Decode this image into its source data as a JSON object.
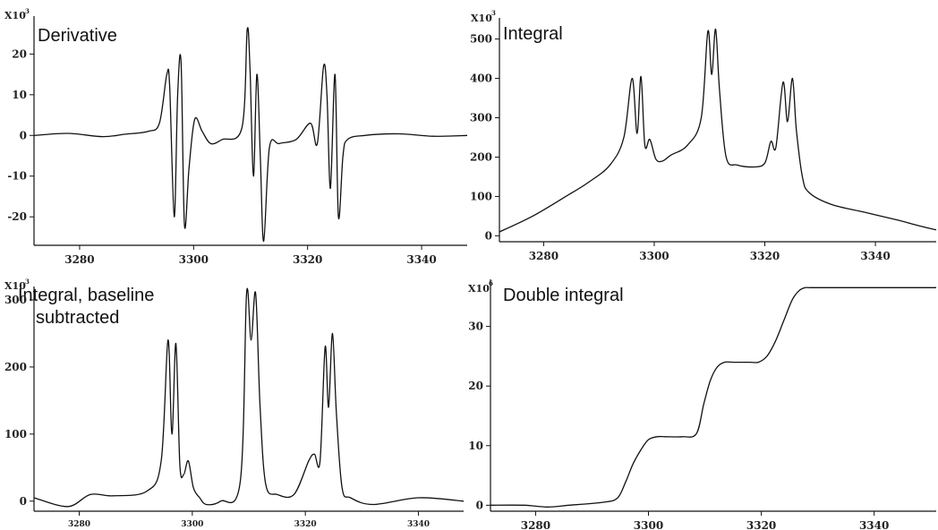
{
  "chart_data": [
    {
      "type": "line",
      "title": "Derivative",
      "y_multiplier": "X10",
      "y_multiplier_exp": "3",
      "xlim": [
        3272,
        3348
      ],
      "ylim": [
        -27,
        28
      ],
      "x_ticks": [
        3280,
        3300,
        3320,
        3340
      ],
      "y_ticks": [
        -20,
        -10,
        0,
        10,
        20
      ],
      "series": [
        {
          "x": [
            3272,
            3278,
            3284,
            3288,
            3292,
            3294,
            3295.3,
            3295.8,
            3296.6,
            3297.2,
            3297.8,
            3298.4,
            3299.2,
            3300.2,
            3301.5,
            3303,
            3305,
            3308.5,
            3309.4,
            3309.9,
            3310.5,
            3311.1,
            3311.7,
            3312.3,
            3313.3,
            3315,
            3318,
            3320.5,
            3321.7,
            3322.8,
            3323.4,
            3324,
            3324.8,
            3325.4,
            3326.2,
            3327,
            3330,
            3336,
            3342,
            3348
          ],
          "y": [
            0,
            0.5,
            -0.3,
            0.3,
            1,
            3,
            15,
            12,
            -20,
            10,
            18,
            -22,
            -8,
            4,
            1,
            -2,
            -1,
            2,
            26,
            16,
            -10,
            15,
            -5,
            -26,
            -3,
            -2,
            -1,
            3,
            -2,
            17,
            10,
            -13,
            15,
            -20,
            -5,
            -1,
            0,
            0.4,
            -0.2,
            0
          ]
        }
      ]
    },
    {
      "type": "line",
      "title": "Integral",
      "y_multiplier": "X10",
      "y_multiplier_exp": "3",
      "xlim": [
        3272,
        3351
      ],
      "ylim": [
        -15,
        540
      ],
      "x_ticks": [
        3280,
        3300,
        3320,
        3340
      ],
      "y_ticks": [
        0,
        100,
        200,
        300,
        400,
        500
      ],
      "series": [
        {
          "x": [
            3272,
            3278,
            3284,
            3288,
            3292,
            3294.5,
            3296,
            3296.9,
            3297.6,
            3298.3,
            3299.2,
            3300.3,
            3301.5,
            3303,
            3306,
            3308.5,
            3309.7,
            3310.4,
            3311.1,
            3311.8,
            3313,
            3315,
            3318,
            3320,
            3321.1,
            3322,
            3323.3,
            3324.1,
            3325,
            3325.7,
            3326.8,
            3328,
            3332,
            3338,
            3344,
            3348,
            3351
          ],
          "y": [
            10,
            50,
            100,
            135,
            180,
            250,
            400,
            260,
            405,
            230,
            245,
            195,
            190,
            205,
            230,
            300,
            520,
            410,
            525,
            370,
            200,
            180,
            175,
            185,
            240,
            225,
            390,
            290,
            400,
            270,
            150,
            110,
            80,
            60,
            40,
            25,
            15
          ]
        }
      ]
    },
    {
      "type": "line",
      "title": "Integral, baseline",
      "title_line2": "subtracted",
      "y_multiplier": "X10",
      "y_multiplier_exp": "3",
      "xlim": [
        3272,
        3348
      ],
      "ylim": [
        -15,
        312
      ],
      "x_ticks": [
        3280,
        3300,
        3320,
        3340
      ],
      "y_ticks": [
        0,
        100,
        200,
        300
      ],
      "series": [
        {
          "x": [
            3272,
            3278,
            3282,
            3286,
            3292,
            3294.5,
            3295.7,
            3296.4,
            3297.1,
            3297.8,
            3298.5,
            3299.3,
            3300.2,
            3301.3,
            3302.5,
            3305,
            3308.5,
            3309.6,
            3310.4,
            3311.2,
            3312,
            3313,
            3315,
            3318,
            3320.6,
            3321.6,
            3322.6,
            3323.5,
            3324.1,
            3324.8,
            3325.5,
            3326.5,
            3328,
            3332,
            3340,
            3348
          ],
          "y": [
            5,
            -8,
            10,
            8,
            15,
            60,
            240,
            100,
            235,
            55,
            40,
            60,
            20,
            5,
            -5,
            0,
            30,
            310,
            240,
            310,
            140,
            25,
            10,
            10,
            60,
            70,
            60,
            230,
            140,
            250,
            130,
            20,
            5,
            -5,
            5,
            0
          ]
        }
      ]
    },
    {
      "type": "line",
      "title": "Double integral",
      "y_multiplier": "X10",
      "y_multiplier_exp": "6",
      "xlim": [
        3272,
        3351
      ],
      "ylim": [
        -1,
        37
      ],
      "x_ticks": [
        3280,
        3300,
        3320,
        3340
      ],
      "y_ticks": [
        0,
        10,
        20,
        30
      ],
      "series": [
        {
          "x": [
            3272,
            3278,
            3282,
            3286,
            3292,
            3294.5,
            3296,
            3297.3,
            3298.8,
            3300,
            3301.5,
            3303,
            3306,
            3308.5,
            3309.8,
            3311,
            3312.2,
            3313.5,
            3315,
            3318,
            3319.5,
            3321,
            3322.5,
            3324,
            3325.5,
            3326.7,
            3327.8,
            3329,
            3335,
            3344,
            3351
          ],
          "y": [
            0,
            0,
            -0.3,
            0,
            0.5,
            1.2,
            4,
            7,
            9.5,
            11,
            11.5,
            11.5,
            11.5,
            12,
            17,
            21,
            23.2,
            24,
            24,
            24,
            24,
            25,
            27.5,
            31,
            34.5,
            36,
            36.5,
            36.5,
            36.5,
            36.5,
            36.5
          ]
        }
      ]
    }
  ]
}
